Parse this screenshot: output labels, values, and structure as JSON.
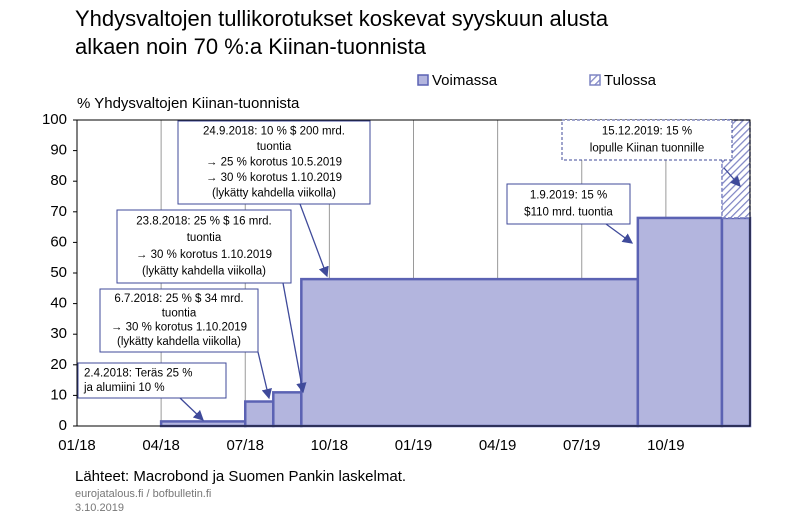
{
  "chart_data": {
    "type": "step-area",
    "title": [
      "Yhdysvaltojen tullikorotukset koskevat syyskuun alusta",
      "alkaen noin 70 %:a Kiinan-tuonnista"
    ],
    "y_label": "% Yhdysvaltojen Kiinan-tuonnista",
    "x": [
      "2018-01",
      "2018-04",
      "2018-07",
      "2018-08",
      "2018-09",
      "2019-09",
      "2019-12"
    ],
    "series": [
      {
        "name": "Voimassa",
        "color": "#b3b5de",
        "edge": "#5b62b3",
        "values": [
          0,
          1.5,
          8,
          11,
          48,
          68,
          68
        ]
      },
      {
        "name": "Tulossa",
        "color": "#8f93c9",
        "edge": "#7f85c4",
        "hatched": true,
        "stacked": true,
        "values": [
          null,
          null,
          null,
          null,
          null,
          null,
          32
        ]
      }
    ],
    "xlim": [
      "2018-01",
      "2020-01"
    ],
    "xticks": [
      {
        "value": "2018-01",
        "label": "01/18"
      },
      {
        "value": "2018-04",
        "label": "04/18"
      },
      {
        "value": "2018-07",
        "label": "07/18"
      },
      {
        "value": "2018-10",
        "label": "10/18"
      },
      {
        "value": "2019-01",
        "label": "01/19"
      },
      {
        "value": "2019-04",
        "label": "04/19"
      },
      {
        "value": "2019-07",
        "label": "07/19"
      },
      {
        "value": "2019-10",
        "label": "10/19"
      }
    ],
    "ylim": [
      0,
      100
    ],
    "yticks": [
      0,
      10,
      20,
      30,
      40,
      50,
      60,
      70,
      80,
      90,
      100
    ],
    "grid": "x",
    "annotations": [
      {
        "lines": [
          "2.4.2018: Teräs 25 %",
          "ja alumiini  10 %"
        ]
      },
      {
        "lines": [
          "6.7.2018: 25 % $ 34 mrd.",
          "tuontia",
          "→ 30 % korotus 1.10.2019",
          "(lykätty kahdella viikolla)"
        ]
      },
      {
        "lines": [
          "23.8.2018: 25 % $ 16 mrd.",
          "tuontia",
          "→ 30 % korotus 1.10.2019",
          "(lykätty kahdella viikolla)"
        ]
      },
      {
        "lines": [
          "24.9.2018: 10 % $ 200 mrd.",
          "tuontia",
          "→ 25 % korotus 10.5.2019",
          "→ 30 % korotus 1.10.2019",
          "(lykätty kahdella viikolla)"
        ]
      },
      {
        "lines": [
          "1.9.2019: 15 %",
          "$110 mrd. tuontia"
        ]
      },
      {
        "lines": [
          "15.12.2019: 15 %",
          "lopulle  Kiinan tuonnille"
        ]
      }
    ],
    "source": "Lähteet: Macrobond ja Suomen Pankin laskelmat.",
    "site": "eurojatalous.fi  / bofbulletin.fi",
    "date": "3.10.2019"
  }
}
